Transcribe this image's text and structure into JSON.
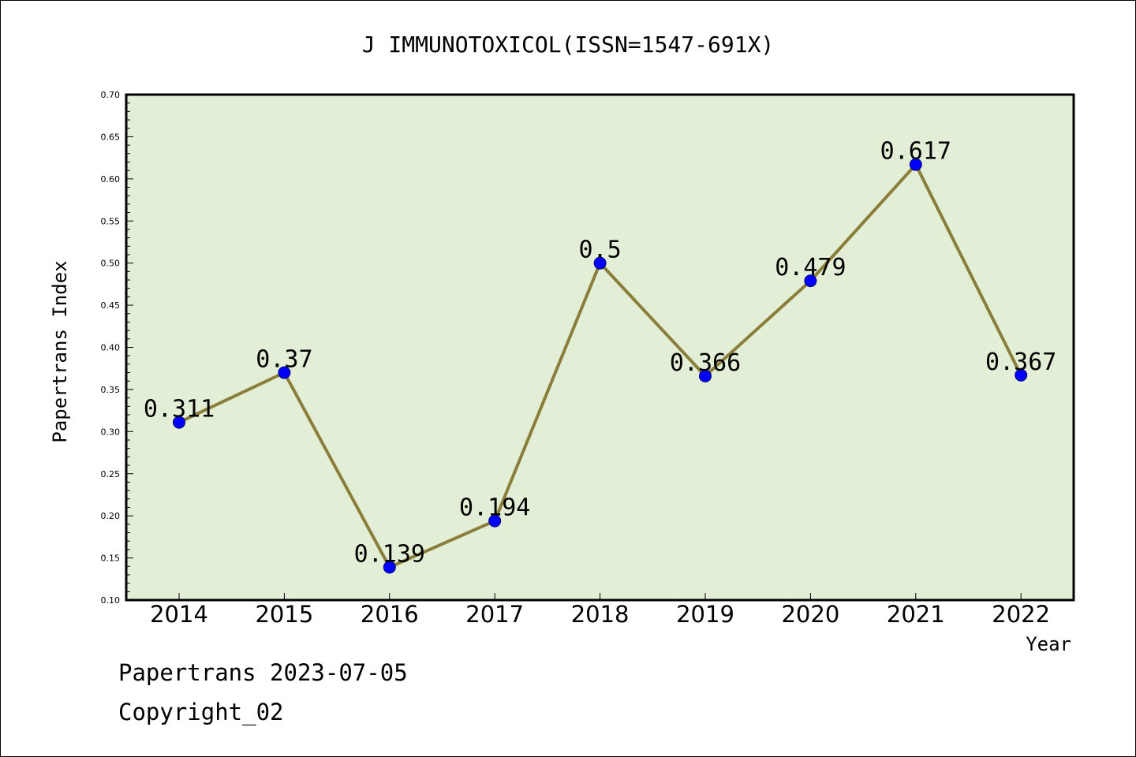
{
  "chart_data": {
    "type": "line",
    "title": "J IMMUNOTOXICOL(ISSN=1547-691X)",
    "xlabel": "Year",
    "ylabel": "Papertrans Index",
    "categories": [
      "2014",
      "2015",
      "2016",
      "2017",
      "2018",
      "2019",
      "2020",
      "2021",
      "2022"
    ],
    "series": [
      {
        "values": [
          0.311,
          0.37,
          0.139,
          0.194,
          0.5,
          0.366,
          0.479,
          0.617,
          0.367
        ],
        "labels": [
          "0.311",
          "0.37",
          "0.139",
          "0.194",
          "0.5",
          "0.366",
          "0.479",
          "0.617",
          "0.367"
        ]
      }
    ],
    "ylim": [
      0.1,
      0.7
    ],
    "yticks": [
      "0.10",
      "0.15",
      "0.20",
      "0.25",
      "0.30",
      "0.35",
      "0.40",
      "0.45",
      "0.50",
      "0.55",
      "0.60",
      "0.65",
      "0.70"
    ],
    "grid": false,
    "legend": "none",
    "colors": {
      "plot_background": "#e2efd6",
      "line": "#8b7e3a",
      "marker_fill": "#0000ff",
      "marker_stroke": "#00007a"
    }
  },
  "footer": {
    "line1": "Papertrans 2023-07-05",
    "line2": "Copyright_02"
  }
}
